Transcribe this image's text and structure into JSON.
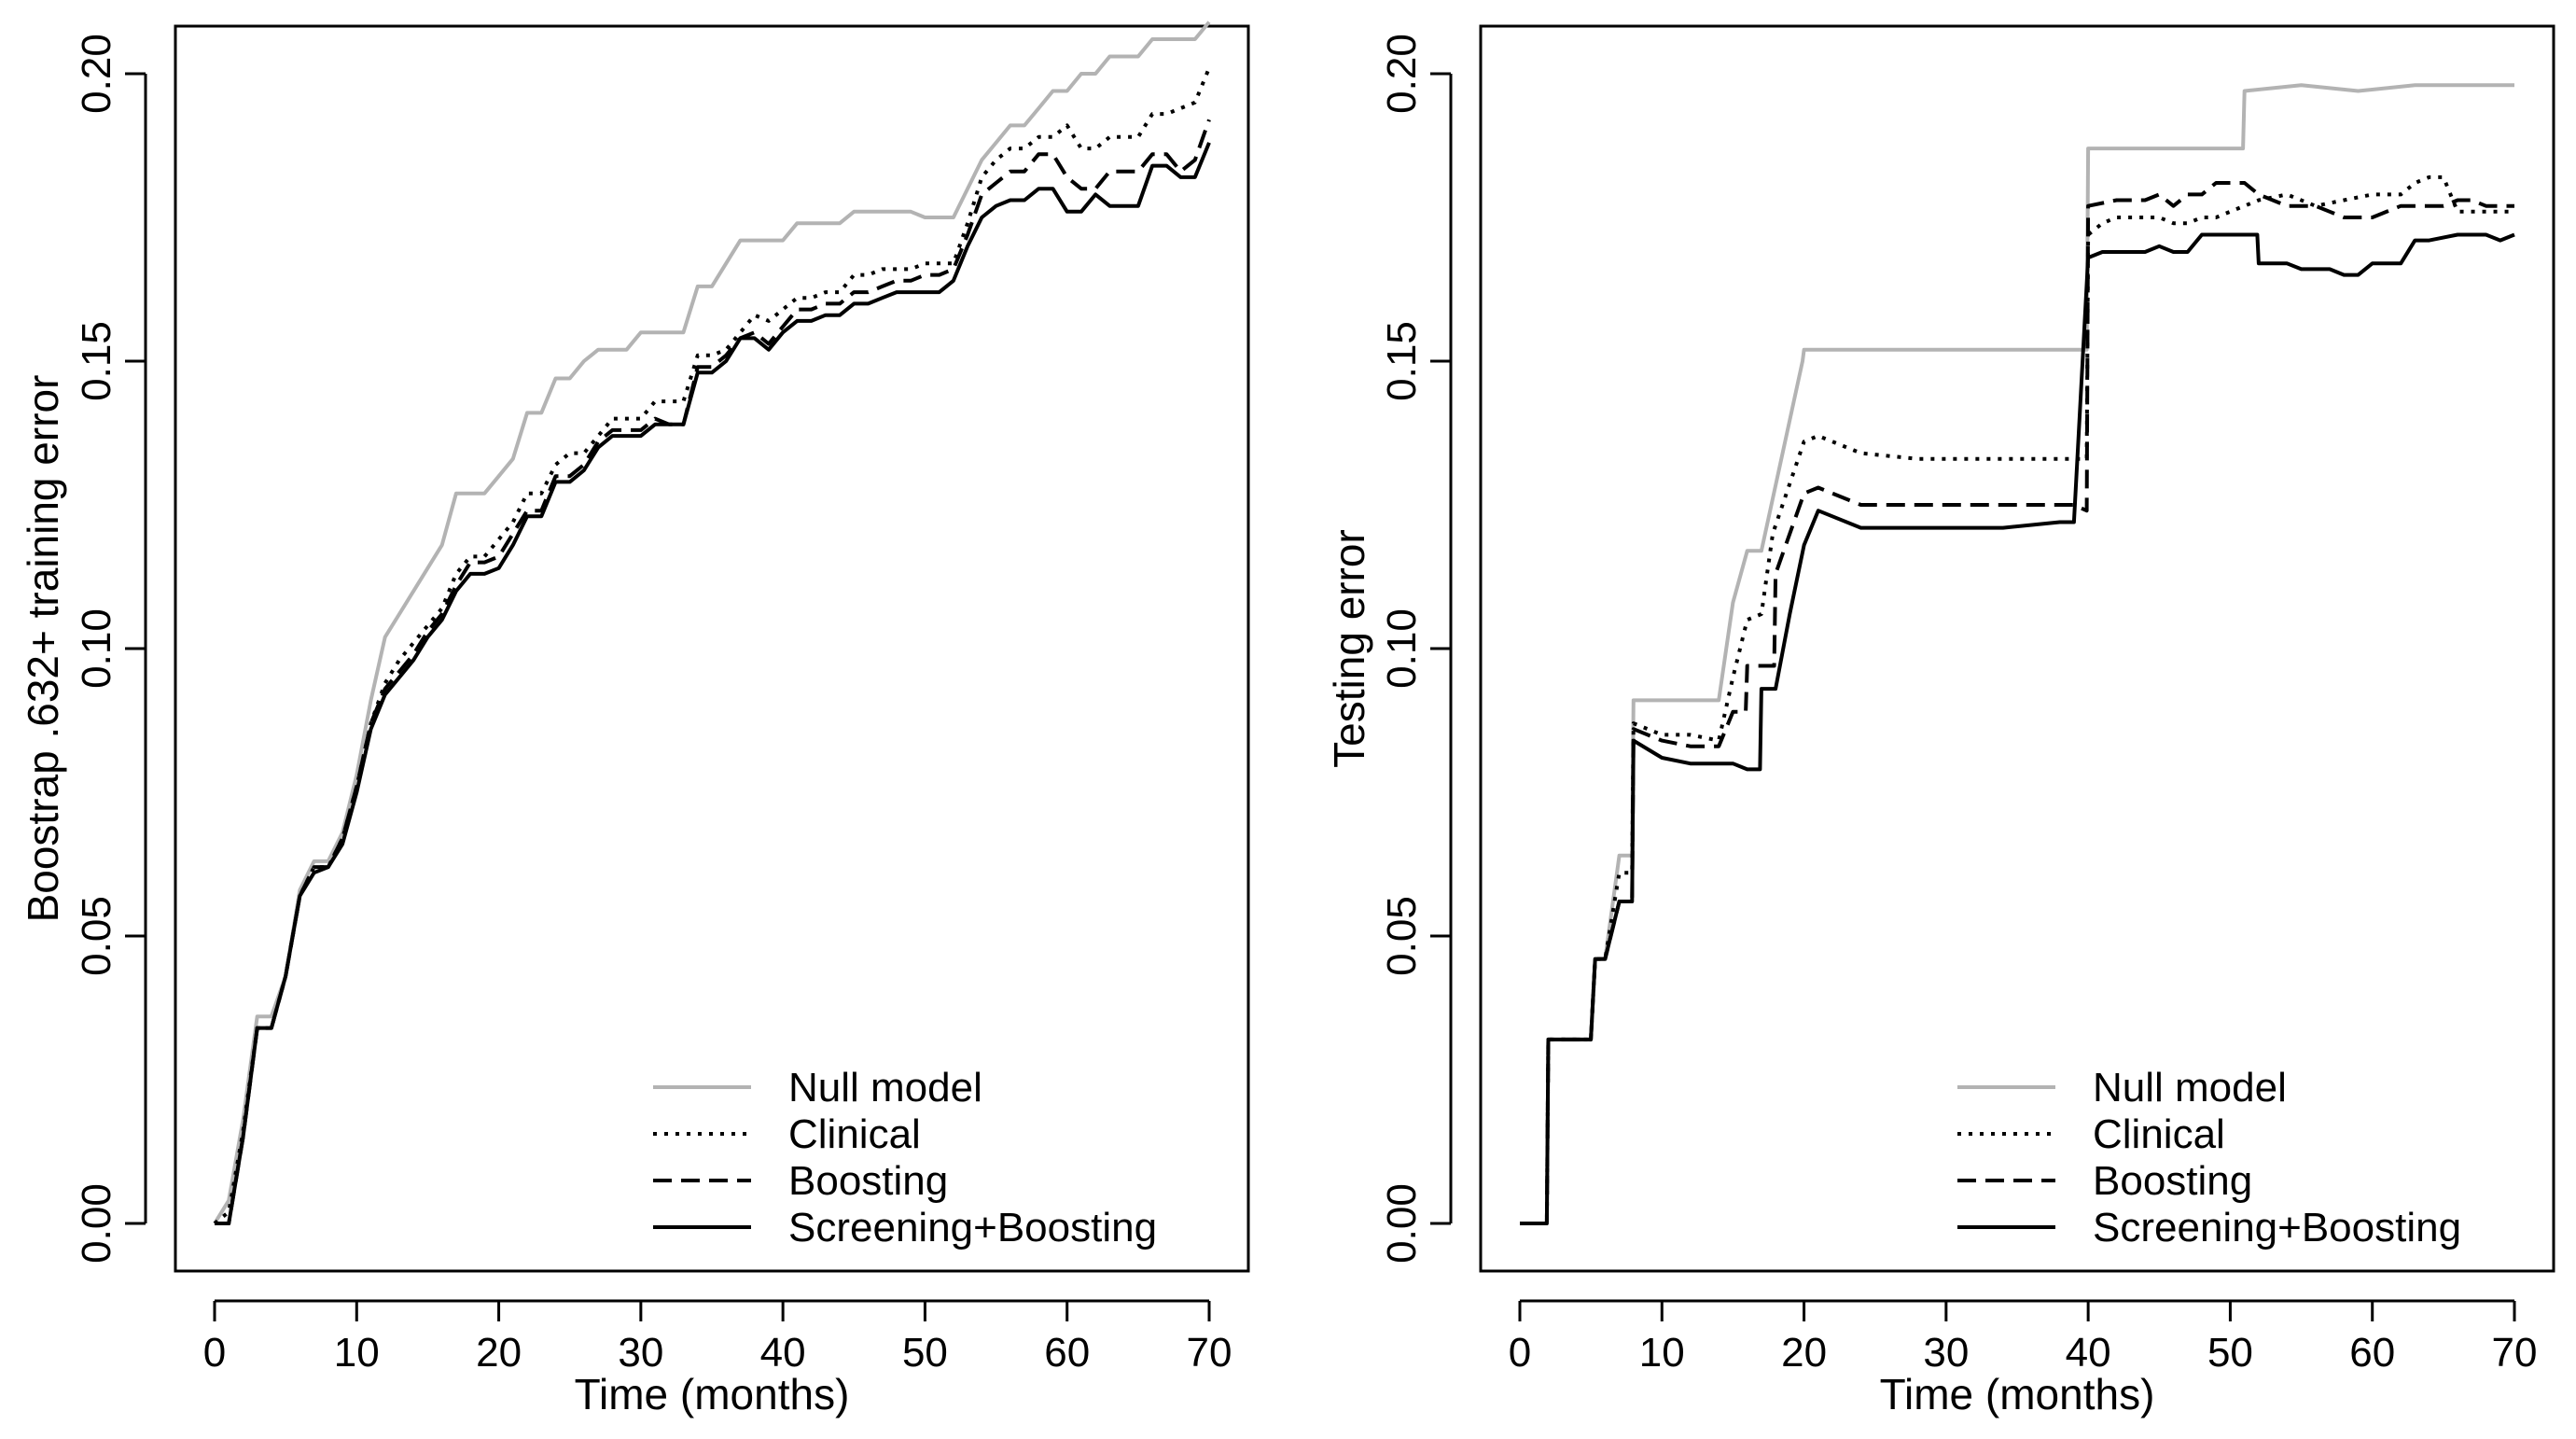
{
  "chart_data": [
    {
      "type": "line",
      "title": "",
      "xlabel": "Time (months)",
      "ylabel": "Boostrap .632+ training error",
      "xlim": [
        0,
        70
      ],
      "ylim": [
        0,
        0.2
      ],
      "xticks": [
        0,
        10,
        20,
        30,
        40,
        50,
        60,
        70
      ],
      "xtick_labels": [
        "0",
        "10",
        "20",
        "30",
        "40",
        "50",
        "60",
        "70"
      ],
      "yticks": [
        0,
        0.05,
        0.1,
        0.15,
        0.2
      ],
      "ytick_labels": [
        "0.00",
        "0.05",
        "0.10",
        "0.15",
        "0.20"
      ],
      "grid": false,
      "legend_position": "bottom-right",
      "series": [
        {
          "name": "Null model",
          "color": "#b3b3b3",
          "dash": "solid",
          "x": [
            0,
            1,
            2,
            3,
            4,
            5,
            6,
            7,
            8,
            9,
            10,
            11,
            12,
            13,
            14,
            15,
            16,
            17,
            18,
            19,
            20,
            21,
            22,
            23,
            24,
            25,
            26,
            27,
            28,
            29,
            30,
            31,
            32,
            33,
            34,
            35,
            36,
            37,
            38,
            39,
            40,
            41,
            42,
            43,
            44,
            45,
            46,
            47,
            48,
            49,
            50,
            51,
            52,
            53,
            54,
            55,
            56,
            57,
            58,
            59,
            60,
            61,
            62,
            63,
            64,
            65,
            66,
            67,
            68,
            69,
            70
          ],
          "y": [
            0.0,
            0.004,
            0.018,
            0.036,
            0.036,
            0.043,
            0.058,
            0.063,
            0.063,
            0.068,
            0.078,
            0.091,
            0.102,
            0.106,
            0.11,
            0.114,
            0.118,
            0.127,
            0.127,
            0.127,
            0.13,
            0.133,
            0.141,
            0.141,
            0.147,
            0.147,
            0.15,
            0.152,
            0.152,
            0.152,
            0.155,
            0.155,
            0.155,
            0.155,
            0.163,
            0.163,
            0.167,
            0.171,
            0.171,
            0.171,
            0.171,
            0.174,
            0.174,
            0.174,
            0.174,
            0.176,
            0.176,
            0.176,
            0.176,
            0.176,
            0.175,
            0.175,
            0.175,
            0.18,
            0.185,
            0.188,
            0.191,
            0.191,
            0.194,
            0.197,
            0.197,
            0.2,
            0.2,
            0.203,
            0.203,
            0.203,
            0.206,
            0.206,
            0.206,
            0.206,
            0.209
          ]
        },
        {
          "name": "Clinical",
          "color": "#000000",
          "dash": "dotted",
          "x": [
            0,
            1,
            2,
            3,
            4,
            5,
            6,
            7,
            8,
            9,
            10,
            11,
            12,
            13,
            14,
            15,
            16,
            17,
            18,
            19,
            20,
            21,
            22,
            23,
            24,
            25,
            26,
            27,
            28,
            29,
            30,
            31,
            32,
            33,
            34,
            35,
            36,
            37,
            38,
            39,
            40,
            41,
            42,
            43,
            44,
            45,
            46,
            47,
            48,
            49,
            50,
            51,
            52,
            53,
            54,
            55,
            56,
            57,
            58,
            59,
            60,
            61,
            62,
            63,
            64,
            65,
            66,
            67,
            68,
            69,
            70
          ],
          "y": [
            0.0,
            0.002,
            0.016,
            0.034,
            0.034,
            0.043,
            0.057,
            0.062,
            0.062,
            0.067,
            0.076,
            0.087,
            0.094,
            0.098,
            0.101,
            0.104,
            0.107,
            0.113,
            0.116,
            0.116,
            0.119,
            0.122,
            0.127,
            0.127,
            0.132,
            0.134,
            0.134,
            0.137,
            0.14,
            0.14,
            0.14,
            0.143,
            0.143,
            0.143,
            0.151,
            0.151,
            0.152,
            0.155,
            0.158,
            0.157,
            0.159,
            0.161,
            0.161,
            0.162,
            0.162,
            0.165,
            0.165,
            0.166,
            0.166,
            0.166,
            0.167,
            0.167,
            0.167,
            0.174,
            0.182,
            0.185,
            0.187,
            0.187,
            0.189,
            0.189,
            0.191,
            0.187,
            0.187,
            0.189,
            0.189,
            0.189,
            0.193,
            0.193,
            0.194,
            0.195,
            0.201
          ]
        },
        {
          "name": "Boosting",
          "color": "#000000",
          "dash": "dashed",
          "x": [
            0,
            1,
            2,
            3,
            4,
            5,
            6,
            7,
            8,
            9,
            10,
            11,
            12,
            13,
            14,
            15,
            16,
            17,
            18,
            19,
            20,
            21,
            22,
            23,
            24,
            25,
            26,
            27,
            28,
            29,
            30,
            31,
            32,
            33,
            34,
            35,
            36,
            37,
            38,
            39,
            40,
            41,
            42,
            43,
            44,
            45,
            46,
            47,
            48,
            49,
            50,
            51,
            52,
            53,
            54,
            55,
            56,
            57,
            58,
            59,
            60,
            61,
            62,
            63,
            64,
            65,
            66,
            67,
            68,
            69,
            70
          ],
          "y": [
            0.0,
            0.0,
            0.015,
            0.034,
            0.034,
            0.043,
            0.057,
            0.062,
            0.062,
            0.067,
            0.076,
            0.087,
            0.093,
            0.096,
            0.099,
            0.103,
            0.106,
            0.111,
            0.115,
            0.115,
            0.116,
            0.12,
            0.124,
            0.124,
            0.13,
            0.13,
            0.132,
            0.136,
            0.138,
            0.138,
            0.138,
            0.14,
            0.139,
            0.139,
            0.149,
            0.149,
            0.151,
            0.154,
            0.155,
            0.153,
            0.156,
            0.159,
            0.159,
            0.16,
            0.16,
            0.162,
            0.162,
            0.163,
            0.164,
            0.164,
            0.165,
            0.165,
            0.166,
            0.172,
            0.179,
            0.181,
            0.183,
            0.183,
            0.186,
            0.186,
            0.182,
            0.18,
            0.18,
            0.183,
            0.183,
            0.183,
            0.186,
            0.186,
            0.183,
            0.185,
            0.192
          ]
        },
        {
          "name": "Screening+Boosting",
          "color": "#000000",
          "dash": "solid",
          "x": [
            0,
            1,
            2,
            3,
            4,
            5,
            6,
            7,
            8,
            9,
            10,
            11,
            12,
            13,
            14,
            15,
            16,
            17,
            18,
            19,
            20,
            21,
            22,
            23,
            24,
            25,
            26,
            27,
            28,
            29,
            30,
            31,
            32,
            33,
            34,
            35,
            36,
            37,
            38,
            39,
            40,
            41,
            42,
            43,
            44,
            45,
            46,
            47,
            48,
            49,
            50,
            51,
            52,
            53,
            54,
            55,
            56,
            57,
            58,
            59,
            60,
            61,
            62,
            63,
            64,
            65,
            66,
            67,
            68,
            69,
            70
          ],
          "y": [
            0.0,
            0.0,
            0.015,
            0.034,
            0.034,
            0.043,
            0.057,
            0.061,
            0.062,
            0.066,
            0.075,
            0.086,
            0.092,
            0.095,
            0.098,
            0.102,
            0.105,
            0.11,
            0.113,
            0.113,
            0.114,
            0.118,
            0.123,
            0.123,
            0.129,
            0.129,
            0.131,
            0.135,
            0.137,
            0.137,
            0.137,
            0.139,
            0.139,
            0.139,
            0.148,
            0.148,
            0.15,
            0.154,
            0.154,
            0.152,
            0.155,
            0.157,
            0.157,
            0.158,
            0.158,
            0.16,
            0.16,
            0.161,
            0.162,
            0.162,
            0.162,
            0.162,
            0.164,
            0.17,
            0.175,
            0.177,
            0.178,
            0.178,
            0.18,
            0.18,
            0.176,
            0.176,
            0.179,
            0.177,
            0.177,
            0.177,
            0.184,
            0.184,
            0.182,
            0.182,
            0.188
          ]
        }
      ]
    },
    {
      "type": "line",
      "title": "",
      "xlabel": "Time (months)",
      "ylabel": "Testing error",
      "xlim": [
        0,
        70
      ],
      "ylim": [
        0,
        0.2
      ],
      "xticks": [
        0,
        10,
        20,
        30,
        40,
        50,
        60,
        70
      ],
      "xtick_labels": [
        "0",
        "10",
        "20",
        "30",
        "40",
        "50",
        "60",
        "70"
      ],
      "yticks": [
        0,
        0.05,
        0.1,
        0.15,
        0.2
      ],
      "ytick_labels": [
        "0.00",
        "0.05",
        "0.10",
        "0.15",
        "0.20"
      ],
      "grid": false,
      "legend_position": "bottom-right",
      "series": [
        {
          "name": "Null model",
          "color": "#b3b3b3",
          "dash": "solid",
          "x": [
            0,
            1,
            1.9,
            2,
            5,
            5.3,
            6,
            7,
            7.9,
            8,
            14,
            15,
            16,
            17,
            19.9,
            20,
            39,
            39.9,
            40,
            42,
            46,
            48,
            50,
            50.9,
            51,
            55,
            59,
            63,
            66,
            70
          ],
          "y": [
            0.0,
            0.0,
            0.0,
            0.032,
            0.032,
            0.046,
            0.046,
            0.064,
            0.064,
            0.091,
            0.091,
            0.108,
            0.117,
            0.117,
            0.15,
            0.152,
            0.152,
            0.152,
            0.187,
            0.187,
            0.187,
            0.187,
            0.187,
            0.187,
            0.197,
            0.198,
            0.197,
            0.198,
            0.198,
            0.198
          ]
        },
        {
          "name": "Clinical",
          "color": "#000000",
          "dash": "dotted",
          "x": [
            0,
            1,
            1.9,
            2,
            5,
            5.3,
            6,
            7,
            7.9,
            8,
            10,
            12,
            14,
            15,
            16,
            17,
            17.8,
            20,
            21,
            22,
            24,
            28,
            34,
            38,
            39,
            39.9,
            40,
            41,
            42,
            44,
            45,
            46,
            47,
            48,
            49,
            50,
            52,
            54,
            56,
            58,
            60,
            62,
            63,
            64,
            65,
            66,
            67,
            68,
            70
          ],
          "y": [
            0.0,
            0.0,
            0.0,
            0.032,
            0.032,
            0.046,
            0.046,
            0.061,
            0.061,
            0.087,
            0.085,
            0.085,
            0.084,
            0.095,
            0.105,
            0.106,
            0.12,
            0.136,
            0.137,
            0.136,
            0.134,
            0.133,
            0.133,
            0.133,
            0.133,
            0.133,
            0.172,
            0.174,
            0.175,
            0.175,
            0.175,
            0.174,
            0.174,
            0.175,
            0.175,
            0.176,
            0.178,
            0.179,
            0.177,
            0.178,
            0.179,
            0.179,
            0.181,
            0.182,
            0.182,
            0.176,
            0.176,
            0.176,
            0.176
          ]
        },
        {
          "name": "Boosting",
          "color": "#000000",
          "dash": "dashed",
          "x": [
            0,
            1,
            1.9,
            2,
            5,
            5.3,
            6,
            7,
            7.9,
            8,
            10,
            12,
            14,
            15,
            15.9,
            16,
            17,
            17.9,
            18,
            20,
            21,
            22,
            24,
            28,
            34,
            38,
            39,
            39.9,
            40,
            42,
            44,
            45,
            46,
            47,
            48,
            49,
            50,
            51,
            52,
            54,
            56,
            57,
            58,
            60,
            62,
            63,
            64,
            65,
            66,
            67,
            68,
            70
          ],
          "y": [
            0.0,
            0.0,
            0.0,
            0.032,
            0.032,
            0.046,
            0.046,
            0.056,
            0.056,
            0.086,
            0.084,
            0.083,
            0.083,
            0.089,
            0.089,
            0.097,
            0.097,
            0.097,
            0.113,
            0.127,
            0.128,
            0.127,
            0.125,
            0.125,
            0.125,
            0.125,
            0.125,
            0.124,
            0.177,
            0.178,
            0.178,
            0.179,
            0.177,
            0.179,
            0.179,
            0.181,
            0.181,
            0.181,
            0.179,
            0.177,
            0.177,
            0.176,
            0.175,
            0.175,
            0.177,
            0.177,
            0.177,
            0.177,
            0.178,
            0.178,
            0.177,
            0.177
          ]
        },
        {
          "name": "Screening+Boosting",
          "color": "#000000",
          "dash": "solid",
          "x": [
            0,
            1,
            1.9,
            2,
            5,
            5.3,
            6,
            7,
            7.9,
            8,
            10,
            12,
            14,
            15,
            16,
            16.9,
            17,
            17.9,
            18,
            19,
            20,
            21,
            22,
            24,
            28,
            34,
            38,
            39,
            40,
            41,
            42,
            44,
            45,
            46,
            47,
            48,
            49,
            50,
            51,
            51.9,
            52,
            54,
            55,
            56,
            57,
            58,
            59,
            60,
            61,
            62,
            63,
            64,
            66,
            67,
            68,
            69,
            70
          ],
          "y": [
            0.0,
            0.0,
            0.0,
            0.032,
            0.032,
            0.046,
            0.046,
            0.056,
            0.056,
            0.084,
            0.081,
            0.08,
            0.08,
            0.08,
            0.079,
            0.079,
            0.093,
            0.093,
            0.093,
            0.106,
            0.118,
            0.124,
            0.123,
            0.121,
            0.121,
            0.121,
            0.122,
            0.122,
            0.168,
            0.169,
            0.169,
            0.169,
            0.17,
            0.169,
            0.169,
            0.172,
            0.172,
            0.172,
            0.172,
            0.172,
            0.167,
            0.167,
            0.166,
            0.166,
            0.166,
            0.165,
            0.165,
            0.167,
            0.167,
            0.167,
            0.171,
            0.171,
            0.172,
            0.172,
            0.172,
            0.171,
            0.172
          ]
        }
      ]
    }
  ]
}
